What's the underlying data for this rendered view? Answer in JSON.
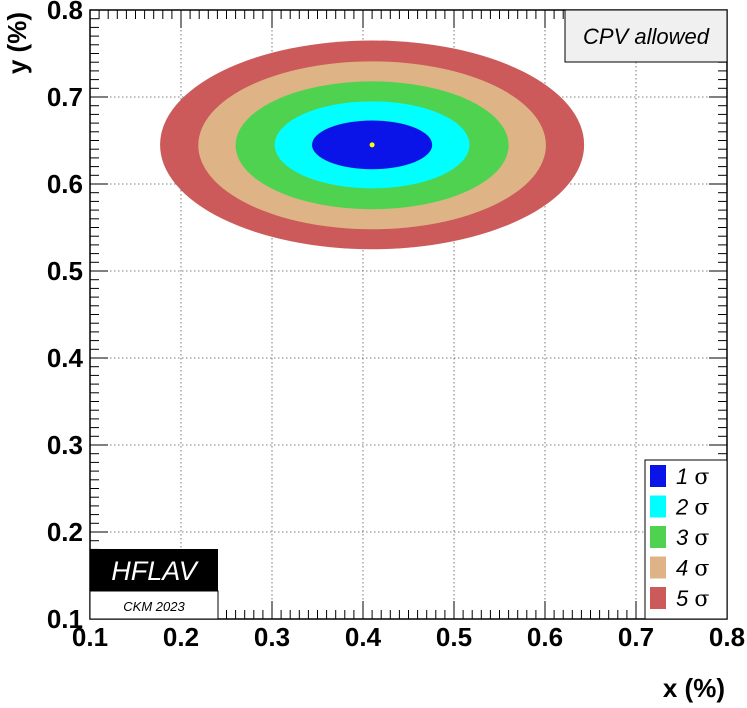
{
  "chart_data": {
    "type": "contour",
    "title": "",
    "xlabel": "x (%)",
    "ylabel": "y (%)",
    "xlim": [
      0.1,
      0.8
    ],
    "ylim": [
      0.1,
      0.8
    ],
    "xticks": [
      "0.1",
      "0.2",
      "0.3",
      "0.4",
      "0.5",
      "0.6",
      "0.7",
      "0.8"
    ],
    "yticks": [
      "0.1",
      "0.2",
      "0.3",
      "0.4",
      "0.5",
      "0.6",
      "0.7",
      "0.8"
    ],
    "grid": true,
    "central_value": {
      "x": 0.41,
      "y": 0.645
    },
    "contours": [
      {
        "name": "5 σ",
        "x_range": [
          0.177,
          0.643
        ],
        "y_range": [
          0.525,
          0.765
        ],
        "color": "#cc5a5a"
      },
      {
        "name": "4 σ",
        "x_range": [
          0.219,
          0.601
        ],
        "y_range": [
          0.548,
          0.741
        ],
        "color": "#deb486"
      },
      {
        "name": "3 σ",
        "x_range": [
          0.26,
          0.56
        ],
        "y_range": [
          0.571,
          0.718
        ],
        "color": "#4fd24f"
      },
      {
        "name": "2 σ",
        "x_range": [
          0.303,
          0.517
        ],
        "y_range": [
          0.595,
          0.695
        ],
        "color": "#00ffff"
      },
      {
        "name": "1 σ",
        "x_range": [
          0.344,
          0.476
        ],
        "y_range": [
          0.617,
          0.673
        ],
        "color": "#0a14e8"
      }
    ],
    "legend": {
      "placement": "bottom-right",
      "entries": [
        {
          "label": "1",
          "sigma": "σ",
          "color": "#0a14e8"
        },
        {
          "label": "2",
          "sigma": "σ",
          "color": "#00ffff"
        },
        {
          "label": "3",
          "sigma": "σ",
          "color": "#4fd24f"
        },
        {
          "label": "4",
          "sigma": "σ",
          "color": "#deb486"
        },
        {
          "label": "5",
          "sigma": "σ",
          "color": "#cc5a5a"
        }
      ]
    },
    "annotations": {
      "cpv_label": "CPV allowed",
      "logo_title": "HFLAV",
      "logo_subtitle": "CKM 2023"
    },
    "central_marker_color": "#ffff00"
  }
}
